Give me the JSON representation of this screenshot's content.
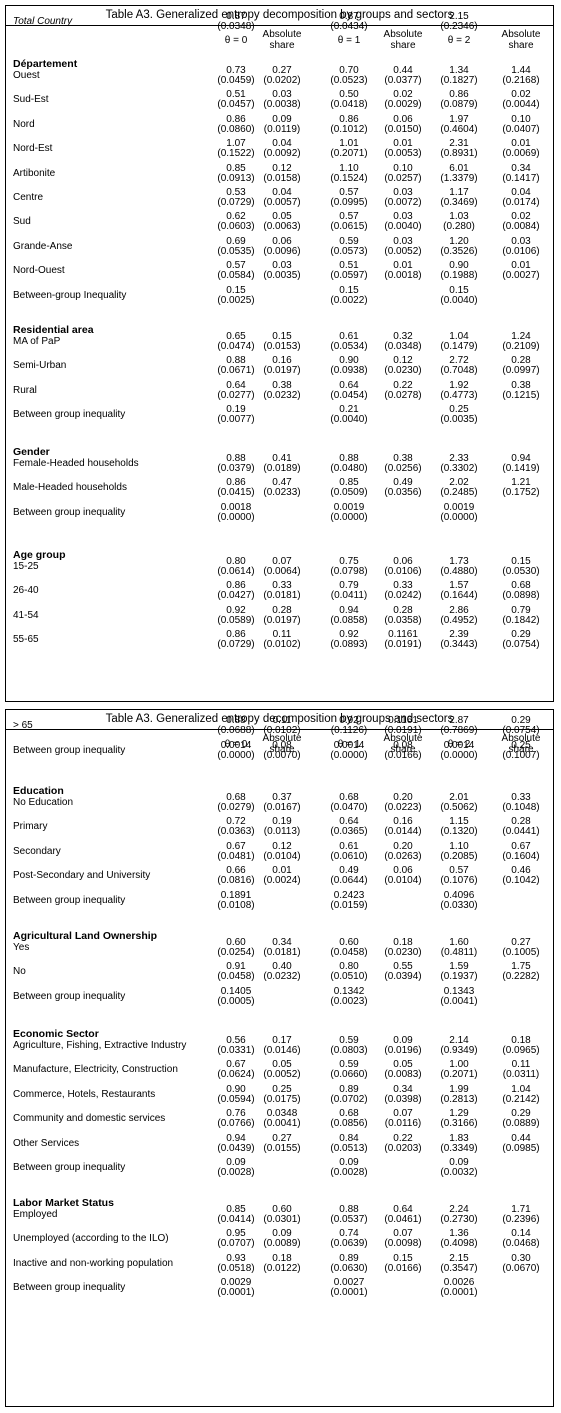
{
  "header": {
    "title": "Table A3. Generalized entropy decomposition by groups and sectors",
    "columns": [
      "θ = 0",
      "Absolute share",
      "θ = 1",
      "Absolute share",
      "θ = 2",
      "Absolute share"
    ]
  },
  "panel1": {
    "total": {
      "label": "Total Country",
      "v": [
        "0.87",
        "",
        "0.87",
        "",
        "2.15",
        ""
      ],
      "se": [
        "(0.0348)",
        "",
        "(0.0434)",
        "",
        "(0.2346)",
        ""
      ]
    },
    "sections": [
      {
        "title": "Département",
        "rows": [
          {
            "label": "Ouest",
            "v": [
              "0.73",
              "0.27",
              "0.70",
              "0.44",
              "1.34",
              "1.44"
            ],
            "se": [
              "(0.0459)",
              "(0.0202)",
              "(0.0523)",
              "(0.0377)",
              "(0.1827)",
              "(0.2168)"
            ]
          },
          {
            "label": "Sud-Est",
            "v": [
              "0.51",
              "0.03",
              "0.50",
              "0.02",
              "0.86",
              "0.02"
            ],
            "se": [
              "(0.0457)",
              "(0.0038)",
              "(0.0418)",
              "(0.0029)",
              "(0.0879)",
              "(0.0044)"
            ]
          },
          {
            "label": "Nord",
            "v": [
              "0.86",
              "0.09",
              "0.86",
              "0.06",
              "1.97",
              "0.10"
            ],
            "se": [
              "(0.0860)",
              "(0.0119)",
              "(0.1012)",
              "(0.0150)",
              "(0.4604)",
              "(0.0407)"
            ]
          },
          {
            "label": "Nord-Est",
            "v": [
              "1.07",
              "0.04",
              "1.01",
              "0.01",
              "2.31",
              "0.01"
            ],
            "se": [
              "(0.1522)",
              "(0.0092)",
              "(0.2071)",
              "(0.0053)",
              "(0.8931)",
              "(0.0069)"
            ]
          },
          {
            "label": "Artibonite",
            "v": [
              "0.85",
              "0.12",
              "1.10",
              "0.10",
              "6.01",
              "0.34"
            ],
            "se": [
              "(0.0913)",
              "(0.0158)",
              "(0.1524)",
              "(0.0257)",
              "(1.3379)",
              "(0.1417)"
            ]
          },
          {
            "label": "Centre",
            "v": [
              "0.53",
              "0.04",
              "0.57",
              "0.03",
              "1.17",
              "0.04"
            ],
            "se": [
              "(0.0729)",
              "(0.0057)",
              "(0.0995)",
              "(0.0072)",
              "(0.3469)",
              "(0.0174)"
            ]
          },
          {
            "label": "Sud",
            "v": [
              "0.62",
              "0.05",
              "0.57",
              "0.03",
              "1.03",
              "0.02"
            ],
            "se": [
              "(0.0603)",
              "(0.0063)",
              "(0.0615)",
              "(0.0040)",
              "(0.280)",
              "(0.0084)"
            ]
          },
          {
            "label": "Grande-Anse",
            "v": [
              "0.69",
              "0.06",
              "0.59",
              "0.03",
              "1.20",
              "0.03"
            ],
            "se": [
              "(0.0535)",
              "(0.0096)",
              "(0.0573)",
              "(0.0052)",
              "(0.3526)",
              "(0.0106)"
            ]
          },
          {
            "label": "Nord-Ouest",
            "v": [
              "0.57",
              "0.03",
              "0.51",
              "0.01",
              "0.90",
              "0.01"
            ],
            "se": [
              "(0.0584)",
              "(0.0035)",
              "(0.0597)",
              "(0.0018)",
              "(0.1988)",
              "(0.0027)"
            ]
          },
          {
            "label": "Between-group Inequality",
            "v": [
              "0.15",
              "",
              "0.15",
              "",
              "0.15",
              ""
            ],
            "se": [
              "(0.0025)",
              "",
              "(0.0022)",
              "",
              "(0.0040)",
              ""
            ]
          }
        ]
      },
      {
        "title": "Residential area",
        "rows": [
          {
            "label": "MA of PaP",
            "v": [
              "0.65",
              "0.15",
              "0.61",
              "0.32",
              "1.04",
              "1.24"
            ],
            "se": [
              "(0.0474)",
              "(0.0153)",
              "(0.0534)",
              "(0.0348)",
              "(0.1479)",
              "(0.2109)"
            ]
          },
          {
            "label": "Semi-Urban",
            "v": [
              "0.88",
              "0.16",
              "0.90",
              "0.12",
              "2.72",
              "0.28"
            ],
            "se": [
              "(0.0671)",
              "(0.0197)",
              "(0.0938)",
              "(0.0230)",
              "(0.7048)",
              "(0.0997)"
            ]
          },
          {
            "label": "Rural",
            "v": [
              "0.64",
              "0.38",
              "0.64",
              "0.22",
              "1.92",
              "0.38"
            ],
            "se": [
              "(0.0277)",
              "(0.0232)",
              "(0.0454)",
              "(0.0278)",
              "(0.4773)",
              "(0.1215)"
            ]
          },
          {
            "label": "Between group inequality",
            "v": [
              "0.19",
              "",
              "0.21",
              "",
              "0.25",
              ""
            ],
            "se": [
              "(0.0077)",
              "",
              "(0.0040)",
              "",
              "(0.0035)",
              ""
            ]
          }
        ]
      },
      {
        "title": "Gender",
        "rows": [
          {
            "label": "Female-Headed households",
            "v": [
              "0.88",
              "0.41",
              "0.88",
              "0.38",
              "2.33",
              "0.94"
            ],
            "se": [
              "(0.0379)",
              "(0.0189)",
              "(0.0480)",
              "(0.0256)",
              "(0.3302)",
              "(0.1419)"
            ]
          },
          {
            "label": "Male-Headed households",
            "v": [
              "0.86",
              "0.47",
              "0.85",
              "0.49",
              "2.02",
              "1.21"
            ],
            "se": [
              "(0.0415)",
              "(0.0233)",
              "(0.0509)",
              "(0.0356)",
              "(0.2485)",
              "(0.1752)"
            ]
          },
          {
            "label": "Between group inequality",
            "v": [
              "0.0018",
              "",
              "0.0019",
              "",
              "0.0019",
              ""
            ],
            "se": [
              "(0.0000)",
              "",
              "(0.0000)",
              "",
              "(0.0000)",
              ""
            ]
          }
        ]
      },
      {
        "title": "Age group",
        "rows": [
          {
            "label": "15-25",
            "v": [
              "0.80",
              "0.07",
              "0.75",
              "0.06",
              "1.73",
              "0.15"
            ],
            "se": [
              "(0.0614)",
              "(0.0064)",
              "(0.0798)",
              "(0.0106)",
              "(0.4880)",
              "(0.0530)"
            ]
          },
          {
            "label": "26-40",
            "v": [
              "0.86",
              "0.33",
              "0.79",
              "0.33",
              "1.57",
              "0.68"
            ],
            "se": [
              "(0.0427)",
              "(0.0181)",
              "(0.0411)",
              "(0.0242)",
              "(0.1644)",
              "(0.0898)"
            ]
          },
          {
            "label": "41-54",
            "v": [
              "0.92",
              "0.28",
              "0.94",
              "0.28",
              "2.86",
              "0.79"
            ],
            "se": [
              "(0.0589)",
              "(0.0197)",
              "(0.0858)",
              "(0.0358)",
              "(0.4952)",
              "(0.1842)"
            ]
          },
          {
            "label": "55-65",
            "v": [
              "0.86",
              "0.11",
              "0.92",
              "0.1161",
              "2.39",
              "0.29"
            ],
            "se": [
              "(0.0729)",
              "(0.0102)",
              "(0.0893)",
              "(0.0191)",
              "(0.3443)",
              "(0.0754)"
            ]
          }
        ]
      }
    ]
  },
  "panel2": {
    "top_rows": [
      {
        "label": "> 65",
        "v": [
          "0.88",
          "0.11",
          "0.92",
          "0.1161",
          "2.87",
          "0.29"
        ],
        "se": [
          "(0.0688)",
          "(0.0102)",
          "(0.1126)",
          "(0.0191)",
          "(0.7869)",
          "(0.0754)"
        ]
      },
      {
        "label": "Between group inequality",
        "v": [
          "0.0014",
          "0.08",
          "0.0014",
          "0.08",
          "0.0014",
          "0.25"
        ],
        "se": [
          "(0.0000)",
          "(0.0070)",
          "(0.0000)",
          "(0.0166)",
          "(0.0000)",
          "(0.1007)"
        ]
      }
    ],
    "sections": [
      {
        "title": "Education",
        "rows": [
          {
            "label": "No Education",
            "v": [
              "0.68",
              "0.37",
              "0.68",
              "0.20",
              "2.01",
              "0.33"
            ],
            "se": [
              "(0.0279)",
              "(0.0167)",
              "(0.0470)",
              "(0.0223)",
              "(0.5062)",
              "(0.1048)"
            ]
          },
          {
            "label": "Primary",
            "v": [
              "0.72",
              "0.19",
              "0.64",
              "0.16",
              "1.15",
              "0.28"
            ],
            "se": [
              "(0.0363)",
              "(0.0113)",
              "(0.0365)",
              "(0.0144)",
              "(0.1320)",
              "(0.0441)"
            ]
          },
          {
            "label": "Secondary",
            "v": [
              "0.67",
              "0.12",
              "0.61",
              "0.20",
              "1.10",
              "0.67"
            ],
            "se": [
              "(0.0481)",
              "(0.0104)",
              "(0.0610)",
              "(0.0263)",
              "(0.2085)",
              "(0.1604)"
            ]
          },
          {
            "label": "Post-Secondary and University",
            "v": [
              "0.66",
              "0.01",
              "0.49",
              "0.06",
              "0.57",
              "0.46"
            ],
            "se": [
              "(0.0816)",
              "(0.0024)",
              "(0.0644)",
              "(0.0104)",
              "(0.1076)",
              "(0.1042)"
            ]
          },
          {
            "label": "Between group inequality",
            "v": [
              "0.1891",
              "",
              "0.2423",
              "",
              "0.4096",
              ""
            ],
            "se": [
              "(0.0108)",
              "",
              "(0.0159)",
              "",
              "(0.0330)",
              ""
            ]
          }
        ]
      },
      {
        "title": "Agricultural Land Ownership",
        "rows": [
          {
            "label": "Yes",
            "v": [
              "0.60",
              "0.34",
              "0.60",
              "0.18",
              "1.60",
              "0.27"
            ],
            "se": [
              "(0.0254)",
              "(0.0181)",
              "(0.0458)",
              "(0.0230)",
              "(0.4811)",
              "(0.1005)"
            ]
          },
          {
            "label": "No",
            "v": [
              "0.91",
              "0.40",
              "0.80",
              "0.55",
              "1.59",
              "1.75"
            ],
            "se": [
              "(0.0458)",
              "(0.0232)",
              "(0.0510)",
              "(0.0394)",
              "(0.1937)",
              "(0.2282)"
            ]
          },
          {
            "label": "Between group inequality",
            "v": [
              "0.1405",
              "",
              "0.1342",
              "",
              "0.1343",
              ""
            ],
            "se": [
              "(0.0005)",
              "",
              "(0.0023)",
              "",
              "(0.0041)",
              ""
            ]
          }
        ]
      },
      {
        "title": "Economic Sector",
        "rows": [
          {
            "label": "Agriculture, Fishing, Extractive Industry",
            "v": [
              "0.56",
              "0.17",
              "0.59",
              "0.09",
              "2.14",
              "0.18"
            ],
            "se": [
              "(0.0331)",
              "(0.0146)",
              "(0.0803)",
              "(0.0196)",
              "(0.9349)",
              "(0.0965)"
            ]
          },
          {
            "label": "Manufacture, Electricity, Construction",
            "v": [
              "0.67",
              "0.05",
              "0.59",
              "0.05",
              "1.00",
              "0.11"
            ],
            "se": [
              "(0.0624)",
              "(0.0052)",
              "(0.0660)",
              "(0.0083)",
              "(0.2071)",
              "(0.0311)"
            ]
          },
          {
            "label": "Commerce, Hotels, Restaurants",
            "v": [
              "0.90",
              "0.25",
              "0.89",
              "0.34",
              "1.99",
              "1.04"
            ],
            "se": [
              "(0.0594)",
              "(0.0175)",
              "(0.0702)",
              "(0.0398)",
              "(0.2813)",
              "(0.2142)"
            ]
          },
          {
            "label": "Community and domestic services",
            "v": [
              "0.76",
              "0.0348",
              "0.68",
              "0.07",
              "1.29",
              "0.29"
            ],
            "se": [
              "(0.0766)",
              "(0.0041)",
              "(0.0856)",
              "(0.0116)",
              "(0.3166)",
              "(0.0889)"
            ]
          },
          {
            "label": "Other Services",
            "v": [
              "0.94",
              "0.27",
              "0.84",
              "0.22",
              "1.83",
              "0.44"
            ],
            "se": [
              "(0.0439)",
              "(0.0155)",
              "(0.0513)",
              "(0.0203)",
              "(0.3349)",
              "(0.0985)"
            ]
          },
          {
            "label": "Between group inequality",
            "v": [
              "0.09",
              "",
              "0.09",
              "",
              "0.09",
              ""
            ],
            "se": [
              "(0.0028)",
              "",
              "(0.0028)",
              "",
              "(0.0032)",
              ""
            ]
          }
        ]
      },
      {
        "title": "Labor Market Status",
        "rows": [
          {
            "label": "Employed",
            "v": [
              "0.85",
              "0.60",
              "0.88",
              "0.64",
              "2.24",
              "1.71"
            ],
            "se": [
              "(0.0414)",
              "(0.0301)",
              "(0.0537)",
              "(0.0461)",
              "(0.2730)",
              "(0.2396)"
            ]
          },
          {
            "label": "Unemployed (according to the ILO)",
            "v": [
              "0.95",
              "0.09",
              "0.74",
              "0.07",
              "1.36",
              "0.14"
            ],
            "se": [
              "(0.0707)",
              "(0.0089)",
              "(0.0639)",
              "(0.0098)",
              "(0.4098)",
              "(0.0468)"
            ]
          },
          {
            "label": "Inactive and non-working population",
            "v": [
              "0.93",
              "0.18",
              "0.89",
              "0.15",
              "2.15",
              "0.30"
            ],
            "se": [
              "(0.0518)",
              "(0.0122)",
              "(0.0630)",
              "(0.0166)",
              "(0.3547)",
              "(0.0670)"
            ]
          },
          {
            "label": "Between group inequality",
            "v": [
              "0.0029",
              "",
              "0.0027",
              "",
              "0.0026",
              ""
            ],
            "se": [
              "(0.0001)",
              "",
              "(0.0001)",
              "",
              "(0.0001)",
              ""
            ]
          }
        ]
      }
    ]
  }
}
